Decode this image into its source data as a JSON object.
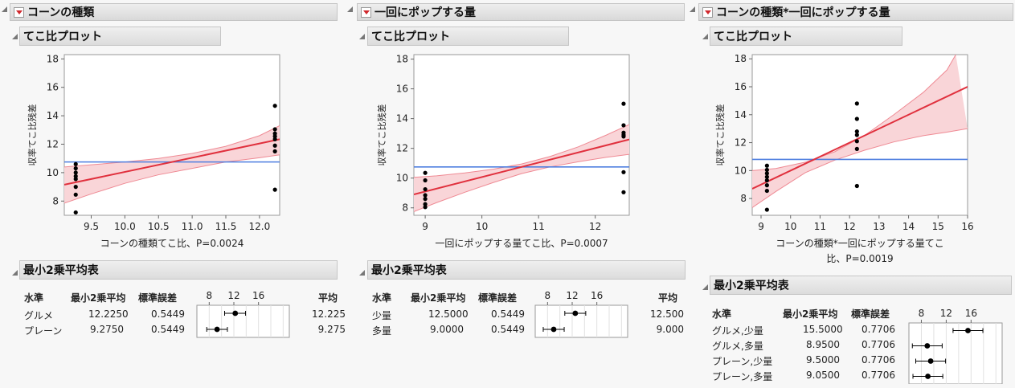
{
  "panels": [
    {
      "title": "コーンの種類",
      "plot_title": "てこ比プロット",
      "ylabel": "収率てこ比残差",
      "xlabel": [
        "コーンの種類てこ比、P=0.0024"
      ],
      "lsm_title": "最小2乗平均表",
      "lsm_headers": [
        "水準",
        "最小2乗平均",
        "標準誤差",
        "平均"
      ],
      "lsm_rows": [
        {
          "level": "グルメ",
          "lsm": "12.2250",
          "se": "0.5449",
          "mean": "12.225"
        },
        {
          "level": "プレーン",
          "lsm": "9.2750",
          "se": "0.5449",
          "mean": "9.275"
        }
      ],
      "lsm_ticks": [
        "8",
        "12",
        "16"
      ]
    },
    {
      "title": "一回にポップする量",
      "plot_title": "てこ比プロット",
      "ylabel": "収率てこ比残差",
      "xlabel": [
        "一回にポップする量てこ比、P=0.0007"
      ],
      "lsm_title": "最小2乗平均表",
      "lsm_headers": [
        "水準",
        "最小2乗平均",
        "標準誤差",
        "平均"
      ],
      "lsm_rows": [
        {
          "level": "少量",
          "lsm": "12.5000",
          "se": "0.5449",
          "mean": "12.500"
        },
        {
          "level": "多量",
          "lsm": "9.0000",
          "se": "0.5449",
          "mean": "9.000"
        }
      ],
      "lsm_ticks": [
        "8",
        "12",
        "16"
      ]
    },
    {
      "title": "コーンの種類*一回にポップする量",
      "plot_title": "てこ比プロット",
      "ylabel": "収率てこ比残差",
      "xlabel": [
        "コーンの種類*一回にポップする量てこ",
        "比、P=0.0019"
      ],
      "lsm_title": "最小2乗平均表",
      "lsm_headers": [
        "水準",
        "最小2乗平均",
        "標準誤差"
      ],
      "lsm_rows": [
        {
          "level": "グルメ,少量",
          "lsm": "15.5000",
          "se": "0.7706"
        },
        {
          "level": "グルメ,多量",
          "lsm": "8.9500",
          "se": "0.7706"
        },
        {
          "level": "プレーン,少量",
          "lsm": "9.5000",
          "se": "0.7706"
        },
        {
          "level": "プレーン,多量",
          "lsm": "9.0500",
          "se": "0.7706"
        }
      ],
      "lsm_ticks": [
        "8",
        "12",
        "16"
      ]
    }
  ],
  "chart_data": [
    {
      "type": "scatter",
      "title": "てこ比プロット",
      "xlabel": "コーンの種類てこ比、P=0.0024",
      "ylabel": "収率てこ比残差",
      "xlim": [
        9.1,
        12.3
      ],
      "ylim": [
        7,
        18.3
      ],
      "xticks": [
        9.5,
        10.0,
        10.5,
        11.0,
        11.5,
        12.0
      ],
      "xtick_labels": [
        "9.5",
        "10.0",
        "10.5",
        "11.0",
        "11.5",
        "12.0"
      ],
      "yticks": [
        8,
        10,
        12,
        14,
        16,
        18
      ],
      "mean_line": 10.75,
      "fit_line": [
        [
          9.1,
          9.15
        ],
        [
          12.3,
          12.35
        ]
      ],
      "band_upper": [
        [
          9.1,
          10.4
        ],
        [
          9.5,
          10.55
        ],
        [
          10.0,
          10.75
        ],
        [
          10.5,
          11.0
        ],
        [
          11.0,
          11.35
        ],
        [
          11.5,
          11.85
        ],
        [
          12.0,
          12.6
        ],
        [
          12.3,
          13.3
        ]
      ],
      "band_lower": [
        [
          9.1,
          7.85
        ],
        [
          9.5,
          8.5
        ],
        [
          10.0,
          9.25
        ],
        [
          10.5,
          9.85
        ],
        [
          11.0,
          10.3
        ],
        [
          11.5,
          10.75
        ],
        [
          12.0,
          11.05
        ],
        [
          12.3,
          11.25
        ]
      ],
      "points": [
        [
          9.27,
          10.6
        ],
        [
          9.27,
          10.3
        ],
        [
          9.27,
          10.0
        ],
        [
          9.27,
          9.75
        ],
        [
          9.27,
          9.55
        ],
        [
          9.27,
          9.0
        ],
        [
          9.27,
          8.45
        ],
        [
          9.27,
          7.2
        ],
        [
          12.23,
          14.7
        ],
        [
          12.23,
          13.05
        ],
        [
          12.23,
          12.75
        ],
        [
          12.23,
          12.55
        ],
        [
          12.23,
          12.35
        ],
        [
          12.23,
          11.9
        ],
        [
          12.23,
          11.5
        ],
        [
          12.23,
          8.8
        ]
      ]
    },
    {
      "type": "scatter",
      "title": "てこ比プロット",
      "xlabel": "一回にポップする量てこ比、P=0.0007",
      "ylabel": "収率てこ比残差",
      "xlim": [
        8.8,
        12.6
      ],
      "ylim": [
        7.5,
        18.3
      ],
      "xticks": [
        9,
        10,
        11,
        12
      ],
      "xtick_labels": [
        "9",
        "10",
        "11",
        "12"
      ],
      "yticks": [
        8,
        10,
        12,
        14,
        16,
        18
      ],
      "mean_line": 10.75,
      "fit_line": [
        [
          8.8,
          8.9
        ],
        [
          12.6,
          12.6
        ]
      ],
      "band_upper": [
        [
          8.8,
          10.05
        ],
        [
          9.2,
          10.15
        ],
        [
          9.7,
          10.35
        ],
        [
          10.2,
          10.6
        ],
        [
          10.7,
          10.95
        ],
        [
          11.2,
          11.45
        ],
        [
          11.7,
          12.1
        ],
        [
          12.2,
          12.9
        ],
        [
          12.6,
          13.6
        ]
      ],
      "band_lower": [
        [
          8.8,
          7.75
        ],
        [
          9.2,
          8.35
        ],
        [
          9.7,
          9.05
        ],
        [
          10.2,
          9.7
        ],
        [
          10.7,
          10.3
        ],
        [
          11.2,
          10.75
        ],
        [
          11.7,
          11.1
        ],
        [
          12.2,
          11.4
        ],
        [
          12.6,
          11.6
        ]
      ],
      "points": [
        [
          9,
          10.35
        ],
        [
          9,
          9.85
        ],
        [
          9,
          9.25
        ],
        [
          9,
          8.85
        ],
        [
          9,
          8.6
        ],
        [
          9,
          8.25
        ],
        [
          9,
          8.05
        ],
        [
          12.5,
          15.0
        ],
        [
          12.5,
          13.55
        ],
        [
          12.5,
          13.05
        ],
        [
          12.5,
          12.9
        ],
        [
          12.5,
          12.8
        ],
        [
          12.5,
          10.4
        ],
        [
          12.5,
          9.05
        ]
      ]
    },
    {
      "type": "scatter",
      "title": "てこ比プロット",
      "xlabel": "コーンの種類*一回にポップする量てこ比、P=0.0019",
      "ylabel": "収率てこ比残差",
      "xlim": [
        8.7,
        16.0
      ],
      "ylim": [
        6.8,
        18.3
      ],
      "xticks": [
        9,
        10,
        11,
        12,
        13,
        14,
        15,
        16
      ],
      "xtick_labels": [
        "9",
        "10",
        "11",
        "12",
        "13",
        "14",
        "15",
        "16"
      ],
      "yticks": [
        8,
        10,
        12,
        14,
        16,
        18
      ],
      "mean_line": 10.8,
      "fit_line": [
        [
          8.7,
          8.7
        ],
        [
          16.0,
          16.0
        ]
      ],
      "band_upper": [
        [
          8.7,
          10.0
        ],
        [
          9.5,
          10.15
        ],
        [
          10.5,
          10.6
        ],
        [
          11.5,
          11.35
        ],
        [
          12.5,
          12.5
        ],
        [
          13.5,
          14.0
        ],
        [
          14.5,
          15.6
        ],
        [
          15.3,
          17.2
        ],
        [
          15.6,
          18.3
        ]
      ],
      "band_lower": [
        [
          8.7,
          7.35
        ],
        [
          9.5,
          8.5
        ],
        [
          10.5,
          9.85
        ],
        [
          11.5,
          10.75
        ],
        [
          12.5,
          11.45
        ],
        [
          13.5,
          12.05
        ],
        [
          14.5,
          12.5
        ],
        [
          15.3,
          12.75
        ],
        [
          16.0,
          13.0
        ]
      ],
      "points": [
        [
          9.2,
          10.35
        ],
        [
          9.2,
          10.05
        ],
        [
          9.2,
          9.8
        ],
        [
          9.2,
          9.55
        ],
        [
          9.2,
          9.3
        ],
        [
          9.2,
          8.95
        ],
        [
          9.2,
          8.55
        ],
        [
          9.2,
          7.2
        ],
        [
          12.25,
          14.8
        ],
        [
          12.25,
          13.7
        ],
        [
          12.25,
          12.8
        ],
        [
          12.25,
          12.55
        ],
        [
          12.25,
          12.1
        ],
        [
          12.25,
          11.55
        ],
        [
          12.25,
          8.9
        ]
      ]
    }
  ],
  "lsm_data": [
    {
      "xlim": [
        6,
        21
      ],
      "ticks": [
        8,
        12,
        16
      ],
      "rows": [
        {
          "m": 12.225,
          "lo": 10.5,
          "hi": 13.9
        },
        {
          "m": 9.275,
          "lo": 7.6,
          "hi": 10.95
        }
      ]
    },
    {
      "xlim": [
        6,
        21
      ],
      "ticks": [
        8,
        12,
        16
      ],
      "rows": [
        {
          "m": 12.5,
          "lo": 10.8,
          "hi": 14.2
        },
        {
          "m": 9.0,
          "lo": 7.3,
          "hi": 10.7
        }
      ]
    },
    {
      "xlim": [
        6,
        21
      ],
      "ticks": [
        8,
        12,
        16
      ],
      "rows": [
        {
          "m": 15.5,
          "lo": 13.1,
          "hi": 17.9
        },
        {
          "m": 8.95,
          "lo": 6.55,
          "hi": 11.35
        },
        {
          "m": 9.5,
          "lo": 7.1,
          "hi": 11.9
        },
        {
          "m": 9.05,
          "lo": 6.65,
          "hi": 11.45
        }
      ]
    }
  ]
}
